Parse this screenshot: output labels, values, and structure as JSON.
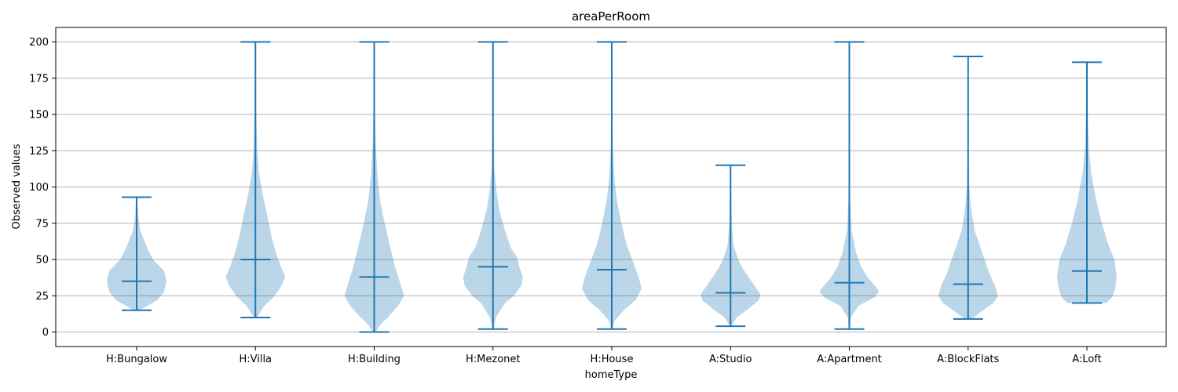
{
  "chart_data": {
    "type": "violin",
    "title": "areaPerRoom",
    "xlabel": "homeType",
    "ylabel": "Observed values",
    "ylim": [
      -10,
      210
    ],
    "yticks": [
      0,
      25,
      50,
      75,
      100,
      125,
      150,
      175,
      200
    ],
    "grid": "horizontal",
    "colors": {
      "body": "#1f77b4",
      "body_alpha": 0.3,
      "line": "#1f77b4",
      "grid": "#b0b0b0"
    },
    "categories": [
      "H:Bungalow",
      "H:Villa",
      "H:Building",
      "H:Mezonet",
      "H:House",
      "A:Studio",
      "A:Apartment",
      "A:BlockFlats",
      "A:Loft"
    ],
    "series": [
      {
        "category": "H:Bungalow",
        "min": 15,
        "max": 93,
        "mean": 35,
        "density": [
          [
            15,
            0.1
          ],
          [
            18,
            0.35
          ],
          [
            22,
            0.7
          ],
          [
            28,
            0.92
          ],
          [
            35,
            1.0
          ],
          [
            42,
            0.92
          ],
          [
            50,
            0.55
          ],
          [
            58,
            0.35
          ],
          [
            65,
            0.22
          ],
          [
            70,
            0.12
          ],
          [
            80,
            0.05
          ],
          [
            93,
            0.02
          ]
        ]
      },
      {
        "category": "H:Villa",
        "min": 10,
        "max": 200,
        "mean": 50,
        "density": [
          [
            10,
            0.05
          ],
          [
            18,
            0.3
          ],
          [
            25,
            0.65
          ],
          [
            32,
            0.88
          ],
          [
            38,
            1.0
          ],
          [
            45,
            0.85
          ],
          [
            55,
            0.68
          ],
          [
            65,
            0.55
          ],
          [
            80,
            0.4
          ],
          [
            95,
            0.24
          ],
          [
            110,
            0.12
          ],
          [
            125,
            0.06
          ],
          [
            150,
            0.03
          ],
          [
            200,
            0.01
          ]
        ]
      },
      {
        "category": "H:Building",
        "min": 0,
        "max": 200,
        "mean": 38,
        "density": [
          [
            0,
            0.05
          ],
          [
            5,
            0.2
          ],
          [
            10,
            0.45
          ],
          [
            18,
            0.8
          ],
          [
            25,
            1.0
          ],
          [
            35,
            0.85
          ],
          [
            45,
            0.7
          ],
          [
            60,
            0.52
          ],
          [
            75,
            0.35
          ],
          [
            90,
            0.2
          ],
          [
            110,
            0.1
          ],
          [
            130,
            0.05
          ],
          [
            160,
            0.02
          ],
          [
            200,
            0.01
          ]
        ]
      },
      {
        "category": "H:Mezonet",
        "min": 2,
        "max": 200,
        "mean": 45,
        "density": [
          [
            2,
            0.02
          ],
          [
            10,
            0.1
          ],
          [
            20,
            0.4
          ],
          [
            25,
            0.7
          ],
          [
            32,
            0.95
          ],
          [
            38,
            1.0
          ],
          [
            45,
            0.88
          ],
          [
            52,
            0.8
          ],
          [
            58,
            0.6
          ],
          [
            70,
            0.4
          ],
          [
            85,
            0.2
          ],
          [
            100,
            0.1
          ],
          [
            115,
            0.04
          ],
          [
            140,
            0.02
          ],
          [
            200,
            0.01
          ]
        ]
      },
      {
        "category": "H:House",
        "min": 2,
        "max": 200,
        "mean": 43,
        "density": [
          [
            2,
            0.02
          ],
          [
            8,
            0.1
          ],
          [
            15,
            0.4
          ],
          [
            22,
            0.8
          ],
          [
            30,
            1.0
          ],
          [
            38,
            0.9
          ],
          [
            48,
            0.72
          ],
          [
            60,
            0.5
          ],
          [
            75,
            0.32
          ],
          [
            90,
            0.18
          ],
          [
            105,
            0.09
          ],
          [
            125,
            0.04
          ],
          [
            150,
            0.02
          ],
          [
            200,
            0.01
          ]
        ]
      },
      {
        "category": "A:Studio",
        "min": 4,
        "max": 115,
        "mean": 27,
        "density": [
          [
            4,
            0.02
          ],
          [
            10,
            0.2
          ],
          [
            16,
            0.6
          ],
          [
            22,
            0.95
          ],
          [
            26,
            1.0
          ],
          [
            32,
            0.8
          ],
          [
            38,
            0.6
          ],
          [
            44,
            0.4
          ],
          [
            50,
            0.25
          ],
          [
            60,
            0.1
          ],
          [
            75,
            0.04
          ],
          [
            115,
            0.01
          ]
        ]
      },
      {
        "category": "A:Apartment",
        "min": 2,
        "max": 200,
        "mean": 34,
        "density": [
          [
            2,
            0.02
          ],
          [
            10,
            0.05
          ],
          [
            18,
            0.3
          ],
          [
            24,
            0.85
          ],
          [
            28,
            1.0
          ],
          [
            32,
            0.85
          ],
          [
            38,
            0.6
          ],
          [
            45,
            0.4
          ],
          [
            55,
            0.22
          ],
          [
            70,
            0.08
          ],
          [
            90,
            0.03
          ],
          [
            200,
            0.005
          ]
        ]
      },
      {
        "category": "A:BlockFlats",
        "min": 9,
        "max": 190,
        "mean": 33,
        "density": [
          [
            9,
            0.12
          ],
          [
            15,
            0.5
          ],
          [
            20,
            0.85
          ],
          [
            25,
            1.0
          ],
          [
            32,
            0.9
          ],
          [
            40,
            0.72
          ],
          [
            50,
            0.55
          ],
          [
            60,
            0.38
          ],
          [
            70,
            0.22
          ],
          [
            85,
            0.1
          ],
          [
            100,
            0.04
          ],
          [
            130,
            0.02
          ],
          [
            190,
            0.005
          ]
        ]
      },
      {
        "category": "A:Loft",
        "min": 20,
        "max": 186,
        "mean": 42,
        "density": [
          [
            20,
            0.65
          ],
          [
            24,
            0.85
          ],
          [
            30,
            0.95
          ],
          [
            38,
            1.0
          ],
          [
            50,
            0.92
          ],
          [
            60,
            0.72
          ],
          [
            75,
            0.5
          ],
          [
            90,
            0.32
          ],
          [
            110,
            0.14
          ],
          [
            130,
            0.06
          ],
          [
            160,
            0.02
          ],
          [
            186,
            0.005
          ]
        ]
      }
    ]
  }
}
